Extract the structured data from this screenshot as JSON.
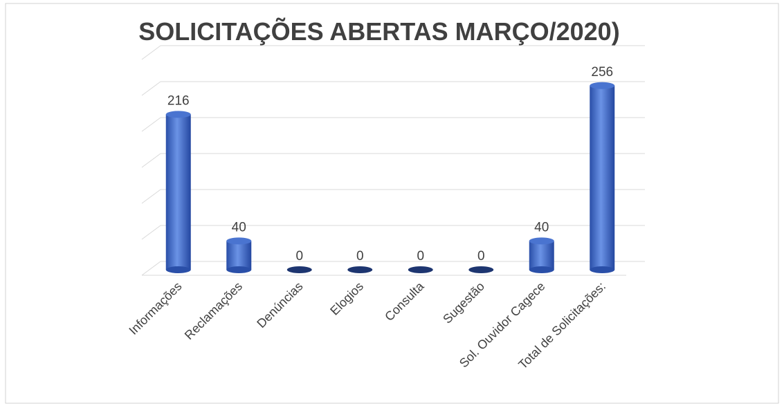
{
  "chart_data": {
    "type": "bar",
    "title": "SOLICITAÇÕES ABERTAS MARÇO/2020)",
    "categories": [
      "Informações",
      "Reclamações",
      "Denúncias",
      "Elogios",
      "Consulta",
      "Sugestão",
      "Sol. Ouvidor Cagece",
      "Total de Solicitações:"
    ],
    "values": [
      216,
      40,
      0,
      0,
      0,
      0,
      40,
      256
    ],
    "color": "#3f6bc9",
    "ylim": [
      0,
      300
    ],
    "yticks": [
      0,
      50,
      100,
      150,
      200,
      250,
      300
    ],
    "grid": true
  }
}
